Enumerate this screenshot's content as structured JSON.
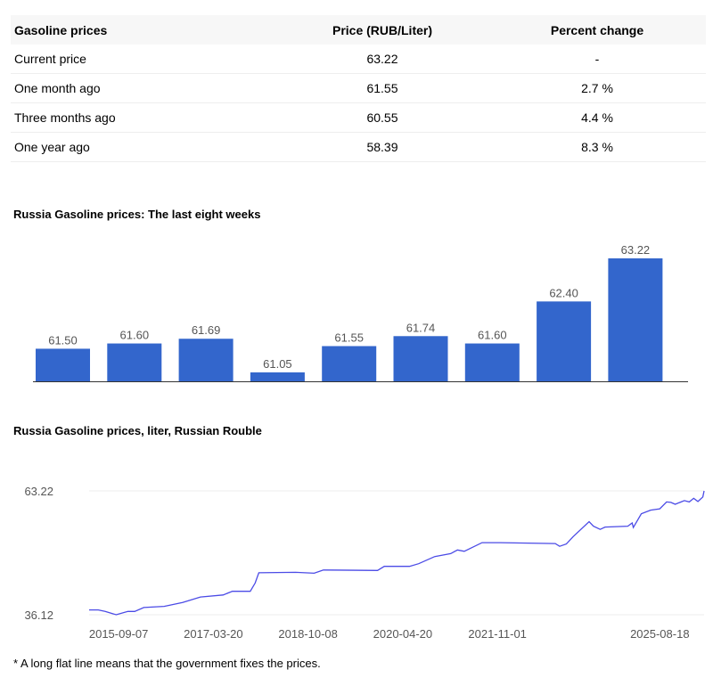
{
  "table": {
    "headers": [
      "Gasoline prices",
      "Price (RUB/Liter)",
      "Percent change"
    ],
    "rows": [
      [
        "Current price",
        "63.22",
        "-"
      ],
      [
        "One month ago",
        "61.55",
        "2.7 %"
      ],
      [
        "Three months ago",
        "60.55",
        "4.4 %"
      ],
      [
        "One year ago",
        "58.39",
        "8.3 %"
      ]
    ]
  },
  "chart_data": [
    {
      "type": "bar",
      "title": "Russia Gasoline prices: The last eight weeks",
      "values": [
        61.5,
        61.6,
        61.69,
        61.05,
        61.55,
        61.74,
        61.6,
        62.4,
        63.22
      ],
      "labels": [
        "61.50",
        "61.60",
        "61.69",
        "61.05",
        "61.55",
        "61.74",
        "61.60",
        "62.40",
        "63.22"
      ],
      "ylim": [
        60.88,
        63.22
      ],
      "color": "#3366cc"
    },
    {
      "type": "line",
      "title": "Russia Gasoline prices, liter, Russian Rouble",
      "ylim": [
        36.12,
        63.22
      ],
      "y_tick_labels": [
        "63.22",
        "36.12"
      ],
      "x_ticks": [
        {
          "t": 4.8,
          "label": "2015-09-07"
        },
        {
          "t": 20.2,
          "label": "2017-03-20"
        },
        {
          "t": 35.6,
          "label": "2018-10-08"
        },
        {
          "t": 51.0,
          "label": "2020-04-20"
        },
        {
          "t": 66.4,
          "label": "2021-11-01"
        },
        {
          "t": 92.8,
          "label": "2025-08-18"
        }
      ],
      "color": "#4b4be6",
      "points": [
        [
          0,
          37.17
        ],
        [
          1.5,
          37.17
        ],
        [
          2.6,
          36.84
        ],
        [
          4.4,
          36.12
        ],
        [
          6.3,
          36.84
        ],
        [
          7.4,
          36.84
        ],
        [
          8.9,
          37.7
        ],
        [
          12.2,
          37.96
        ],
        [
          15.2,
          38.81
        ],
        [
          18.1,
          40.0
        ],
        [
          21.8,
          40.45
        ],
        [
          23.3,
          41.24
        ],
        [
          26.2,
          41.24
        ],
        [
          27.0,
          43.07
        ],
        [
          27.6,
          45.3
        ],
        [
          33.6,
          45.4
        ],
        [
          36.6,
          45.2
        ],
        [
          38.1,
          45.9
        ],
        [
          46.9,
          45.8
        ],
        [
          48.0,
          46.7
        ],
        [
          52.1,
          46.7
        ],
        [
          53.6,
          47.3
        ],
        [
          56.2,
          48.85
        ],
        [
          58.8,
          49.5
        ],
        [
          59.9,
          50.3
        ],
        [
          61.0,
          50.0
        ],
        [
          63.9,
          51.9
        ],
        [
          66.9,
          51.9
        ],
        [
          75.8,
          51.7
        ],
        [
          76.5,
          51.1
        ],
        [
          77.6,
          51.6
        ],
        [
          78.7,
          53.2
        ],
        [
          81.3,
          56.5
        ],
        [
          82.0,
          55.5
        ],
        [
          83.1,
          54.8
        ],
        [
          83.9,
          55.3
        ],
        [
          87.6,
          55.5
        ],
        [
          88.3,
          56.2
        ],
        [
          88.5,
          55.2
        ],
        [
          89.8,
          58.2
        ],
        [
          91.3,
          59.0
        ],
        [
          92.8,
          59.3
        ],
        [
          93.9,
          60.8
        ],
        [
          94.6,
          60.7
        ],
        [
          95.3,
          60.3
        ],
        [
          96.8,
          61.1
        ],
        [
          97.6,
          60.8
        ],
        [
          98.3,
          61.6
        ],
        [
          99.0,
          60.9
        ],
        [
          99.8,
          61.9
        ],
        [
          100,
          63.22
        ]
      ]
    }
  ],
  "note": "* A long flat line means that the government fixes the prices."
}
